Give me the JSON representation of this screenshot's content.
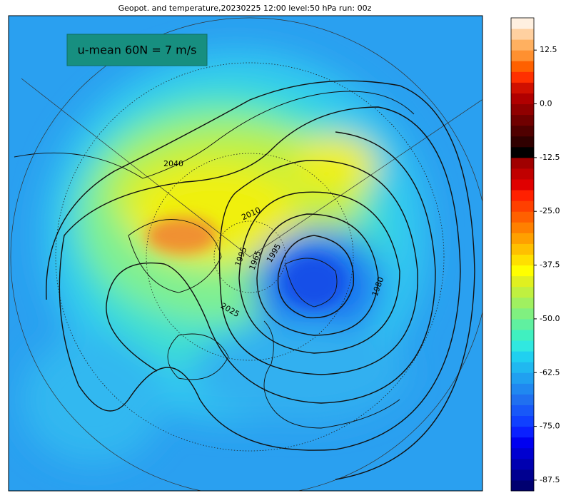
{
  "title": "Geopot. and temperature,20230225 12:00 level:50 hPa run: 00z",
  "annotation": "u-mean 60N = 7 m/s",
  "contour_labels": [
    "2040",
    "2010",
    "1995",
    "1965",
    "1995",
    "1980",
    "2025"
  ],
  "colorbar": {
    "lim": [
      -90,
      20
    ],
    "ticks": [
      12.5,
      {
        "value": 0,
        "label": "0.0"
      },
      -12.5,
      {
        "value": -25,
        "label": "-25.0"
      },
      -37.5,
      {
        "value": -50,
        "label": "-50.0"
      },
      -62.5,
      {
        "value": -75,
        "label": "-75.0"
      },
      -87.5
    ],
    "colors": [
      "#000070",
      "#000090",
      "#0000b0",
      "#0000d0",
      "#0000f0",
      "#0a20ff",
      "#1040ff",
      "#1858f8",
      "#2070f0",
      "#2088f0",
      "#20a0f0",
      "#20b8f0",
      "#20d0f0",
      "#30e8e0",
      "#40f0c0",
      "#60f0a0",
      "#80f080",
      "#a0f060",
      "#c0f040",
      "#e0f020",
      "#ffff00",
      "#ffe000",
      "#ffc000",
      "#ffa000",
      "#ff8000",
      "#ff6000",
      "#ff4000",
      "#ff2000",
      "#e00000",
      "#c00000",
      "#a00000",
      "#000000",
      "#300000",
      "#500000",
      "#700000",
      "#900000",
      "#b00000",
      "#d01000",
      "#ff3000",
      "#ff6000",
      "#ff9030",
      "#ffb060",
      "#ffd0a0",
      "#fff0e0"
    ]
  }
}
